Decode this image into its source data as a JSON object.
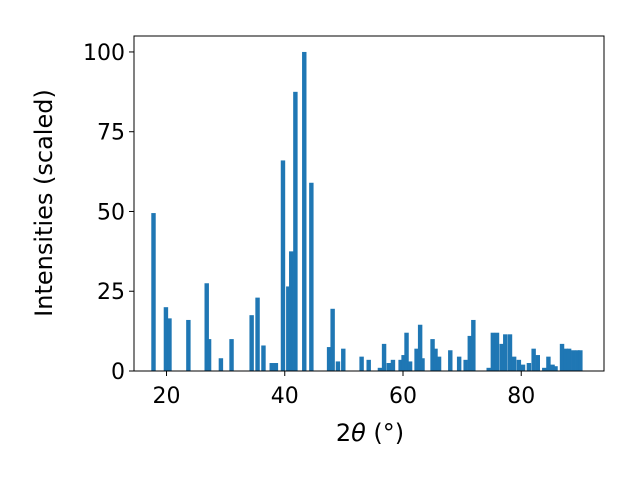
{
  "chart_data": {
    "type": "bar",
    "xlabel_main": "2",
    "xlabel_symbol": "θ",
    "xlabel_unit": " (°)",
    "ylabel": "Intensities (scaled)",
    "xlim": [
      14.5,
      94.0
    ],
    "ylim": [
      0,
      105
    ],
    "xticks": [
      20,
      40,
      60,
      80
    ],
    "yticks": [
      0,
      25,
      50,
      75,
      100
    ],
    "bar_width": 0.75,
    "bar_color": "#1f77b4",
    "grid": false,
    "legend": "none",
    "x": [
      17.8,
      19.9,
      20.5,
      23.7,
      26.8,
      27.2,
      29.2,
      31.0,
      34.4,
      35.4,
      36.4,
      37.8,
      38.5,
      39.7,
      40.6,
      41.1,
      41.8,
      43.3,
      44.5,
      47.5,
      48.1,
      49.0,
      49.9,
      53.0,
      54.2,
      56.1,
      56.8,
      57.6,
      58.3,
      59.6,
      60.1,
      60.6,
      61.2,
      62.3,
      62.9,
      63.3,
      65.0,
      65.5,
      66.1,
      68.0,
      69.5,
      70.6,
      71.3,
      71.9,
      74.5,
      75.2,
      75.9,
      76.7,
      77.3,
      78.1,
      78.8,
      79.6,
      80.3,
      81.3,
      82.1,
      82.8,
      83.9,
      84.6,
      85.3,
      85.8,
      86.9,
      87.5,
      88.1,
      88.8,
      89.5,
      90.0
    ],
    "values": [
      49.5,
      20.0,
      16.5,
      16.0,
      27.5,
      10.0,
      4.0,
      10.0,
      17.5,
      23.0,
      8.0,
      2.5,
      2.5,
      66.0,
      26.5,
      37.5,
      87.5,
      100.0,
      59.0,
      7.5,
      19.5,
      3.0,
      7.0,
      4.5,
      3.5,
      1.0,
      8.5,
      2.5,
      3.5,
      3.5,
      5.0,
      12.0,
      3.0,
      7.0,
      14.5,
      4.0,
      10.0,
      7.0,
      4.5,
      6.5,
      4.5,
      3.5,
      11.0,
      16.0,
      1.0,
      12.0,
      12.0,
      8.5,
      11.5,
      11.5,
      4.5,
      3.5,
      2.0,
      2.5,
      7.0,
      5.0,
      1.0,
      4.5,
      2.0,
      1.5,
      8.5,
      7.0,
      7.0,
      6.5,
      6.5,
      6.5
    ]
  }
}
